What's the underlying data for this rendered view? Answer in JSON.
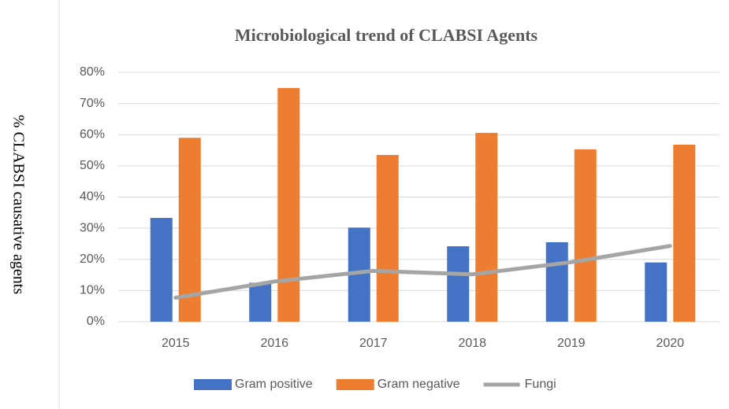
{
  "chart_data": {
    "type": "bar",
    "title": "Microbiological trend of CLABSI Agents",
    "y_label": "% CLABSI causative agents",
    "categories": [
      "2015",
      "2016",
      "2017",
      "2018",
      "2019",
      "2020"
    ],
    "series": [
      {
        "name": "Gram positive",
        "color": "#4472c4",
        "type": "bar",
        "values": [
          33.3,
          12.5,
          30.2,
          24.2,
          25.5,
          19.0
        ]
      },
      {
        "name": "Gram negative",
        "color": "#ed7d31",
        "type": "bar",
        "values": [
          59.0,
          75.0,
          53.5,
          60.6,
          55.3,
          56.8
        ]
      },
      {
        "name": "Fungi",
        "color": "#a5a5a5",
        "type": "line",
        "values": [
          7.7,
          12.9,
          16.3,
          15.2,
          19.1,
          24.3
        ]
      }
    ],
    "ylim": [
      0,
      80
    ],
    "yticks": [
      {
        "value": 0,
        "label": "0%"
      },
      {
        "value": 10,
        "label": "10%"
      },
      {
        "value": 20,
        "label": "20%"
      },
      {
        "value": 30,
        "label": "30%"
      },
      {
        "value": 40,
        "label": "40%"
      },
      {
        "value": 50,
        "label": "50%"
      },
      {
        "value": 60,
        "label": "60%"
      },
      {
        "value": 70,
        "label": "70%"
      },
      {
        "value": 80,
        "label": "80%"
      }
    ],
    "grid": true,
    "legend": "bottom"
  }
}
